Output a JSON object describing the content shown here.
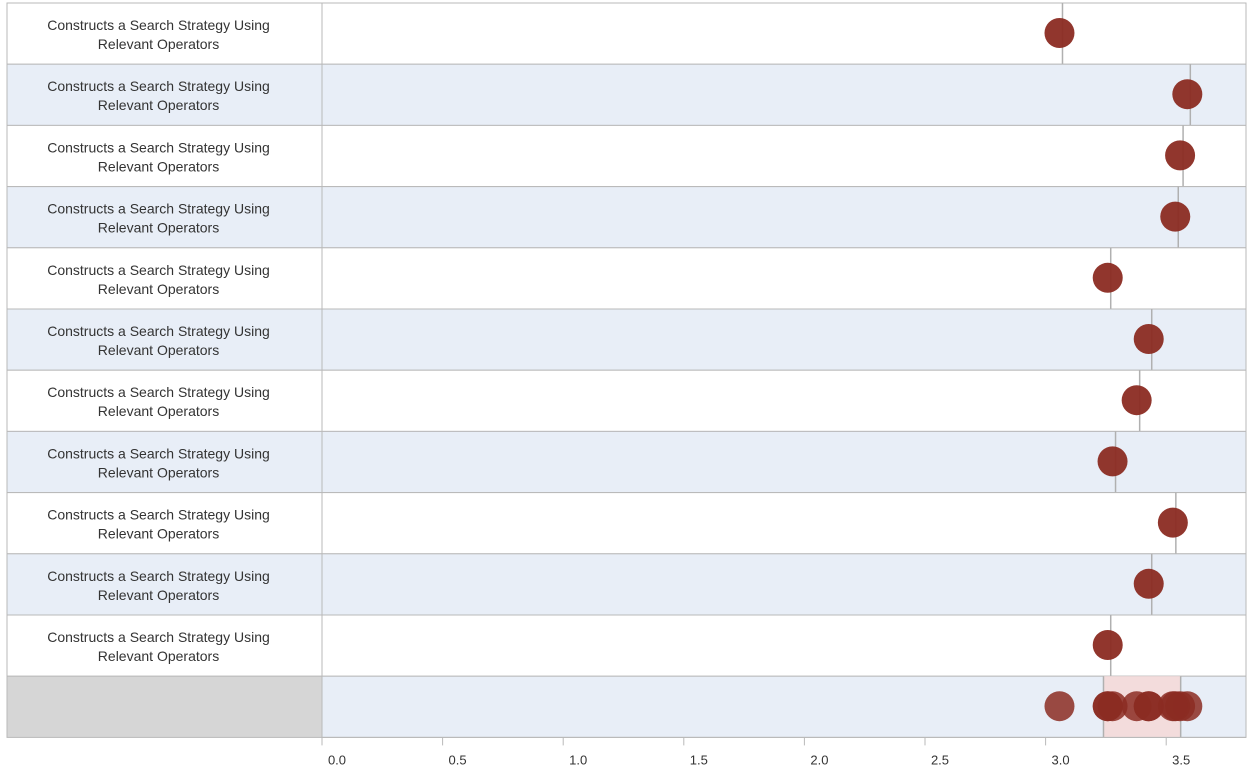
{
  "colors": {
    "dot": "#8b2b22",
    "row_alt": "#e8eef7",
    "row_plain": "#ffffff",
    "summary_label_bg": "#d6d6d6",
    "iqr_band": "#f3dcdc",
    "border": "#b9b9b9",
    "reference_line": "#b0b0b0"
  },
  "chart_data": {
    "type": "scatter",
    "orientation": "horizontal dot plot",
    "xlim": [
      0,
      3.8
    ],
    "x_ticks": [
      "0.0",
      "0.5",
      "1.0",
      "1.5",
      "2.0",
      "2.5",
      "3.0",
      "3.5"
    ],
    "rows": [
      {
        "label_line1": "Constructs a Search Strategy Using",
        "label_line2": "Relevant Operators",
        "value": 3.07
      },
      {
        "label_line1": "Constructs a Search Strategy Using",
        "label_line2": "Relevant Operators",
        "value": 3.6
      },
      {
        "label_line1": "Constructs a Search Strategy Using",
        "label_line2": "Relevant Operators",
        "value": 3.57
      },
      {
        "label_line1": "Constructs a Search Strategy Using",
        "label_line2": "Relevant Operators",
        "value": 3.55
      },
      {
        "label_line1": "Constructs a Search Strategy Using",
        "label_line2": "Relevant Operators",
        "value": 3.27
      },
      {
        "label_line1": "Constructs a Search Strategy Using",
        "label_line2": "Relevant Operators",
        "value": 3.44
      },
      {
        "label_line1": "Constructs a Search Strategy Using",
        "label_line2": "Relevant Operators",
        "value": 3.39
      },
      {
        "label_line1": "Constructs a Search Strategy Using",
        "label_line2": "Relevant Operators",
        "value": 3.29
      },
      {
        "label_line1": "Constructs a Search Strategy Using",
        "label_line2": "Relevant Operators",
        "value": 3.54
      },
      {
        "label_line1": "Constructs a Search Strategy Using",
        "label_line2": "Relevant Operators",
        "value": 3.44
      },
      {
        "label_line1": "Constructs a Search Strategy Using",
        "label_line2": "Relevant Operators",
        "value": 3.27
      }
    ],
    "summary_band": [
      3.24,
      3.56
    ],
    "grid": false
  }
}
